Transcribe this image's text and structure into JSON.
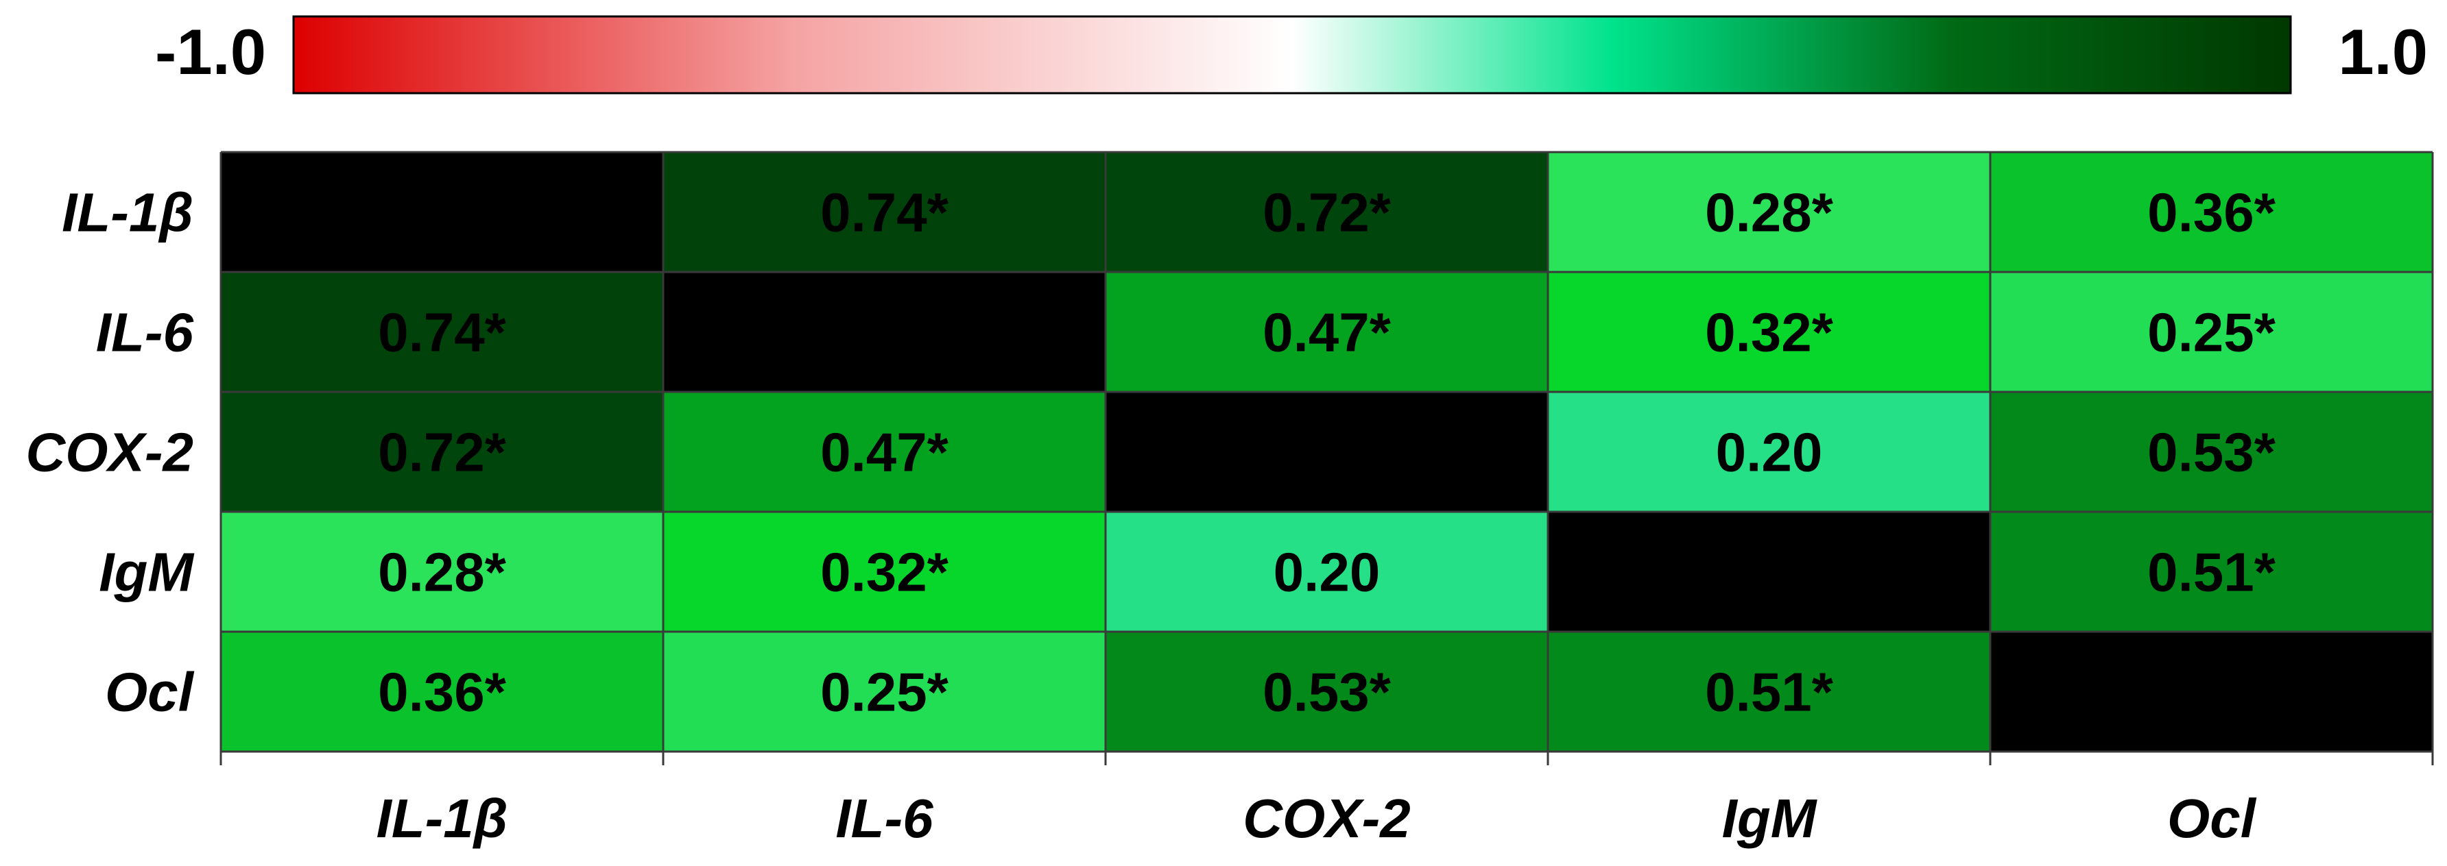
{
  "chart_data": {
    "type": "heatmap",
    "rows": [
      "IL-1β",
      "IL-6",
      "COX-2",
      "IgM",
      "Ocl"
    ],
    "columns": [
      "IL-1β",
      "IL-6",
      "COX-2",
      "IgM",
      "Ocl"
    ],
    "values": [
      [
        null,
        0.74,
        0.72,
        0.28,
        0.36
      ],
      [
        0.74,
        null,
        0.47,
        0.32,
        0.25
      ],
      [
        0.72,
        0.47,
        null,
        0.2,
        0.53
      ],
      [
        0.28,
        0.32,
        0.2,
        null,
        0.51
      ],
      [
        0.36,
        0.25,
        0.53,
        0.51,
        null
      ]
    ],
    "significant": [
      [
        false,
        true,
        true,
        true,
        true
      ],
      [
        true,
        false,
        true,
        true,
        true
      ],
      [
        true,
        true,
        false,
        false,
        true
      ],
      [
        true,
        true,
        false,
        false,
        true
      ],
      [
        true,
        true,
        true,
        true,
        false
      ]
    ],
    "labels": [
      [
        "",
        "0.74*",
        "0.72*",
        "0.28*",
        "0.36*"
      ],
      [
        "0.74*",
        "",
        "0.47*",
        "0.32*",
        "0.25*"
      ],
      [
        "0.72*",
        "0.47*",
        "",
        "0.20",
        "0.53*"
      ],
      [
        "0.28*",
        "0.32*",
        "0.20",
        "",
        "0.51*"
      ],
      [
        "0.36*",
        "0.25*",
        "0.53*",
        "0.51*",
        ""
      ]
    ],
    "colorbar": {
      "min_label": "-1.0",
      "max_label": "1.0",
      "range": [
        -1.0,
        1.0
      ]
    },
    "cell_colors": [
      [
        "#000000",
        "#00420a",
        "#00450b",
        "#2ae35a",
        "#0ac22c"
      ],
      [
        "#00420a",
        "#000000",
        "#03a21f",
        "#07d62b",
        "#22de55"
      ],
      [
        "#00450b",
        "#03a21f",
        "#000000",
        "#25e087",
        "#02891a"
      ],
      [
        "#2ae35a",
        "#07d62b",
        "#25e087",
        "#000000",
        "#028b1a"
      ],
      [
        "#0ac22c",
        "#22de55",
        "#02891a",
        "#028b1a",
        "#000000"
      ]
    ],
    "diagonal_color": "#000000",
    "colormap": [
      "#dd0000",
      "#f5a3a3",
      "#ffffff",
      "#00e38c",
      "#006a15",
      "#003800"
    ],
    "grid": true,
    "legend": "top colorbar"
  }
}
